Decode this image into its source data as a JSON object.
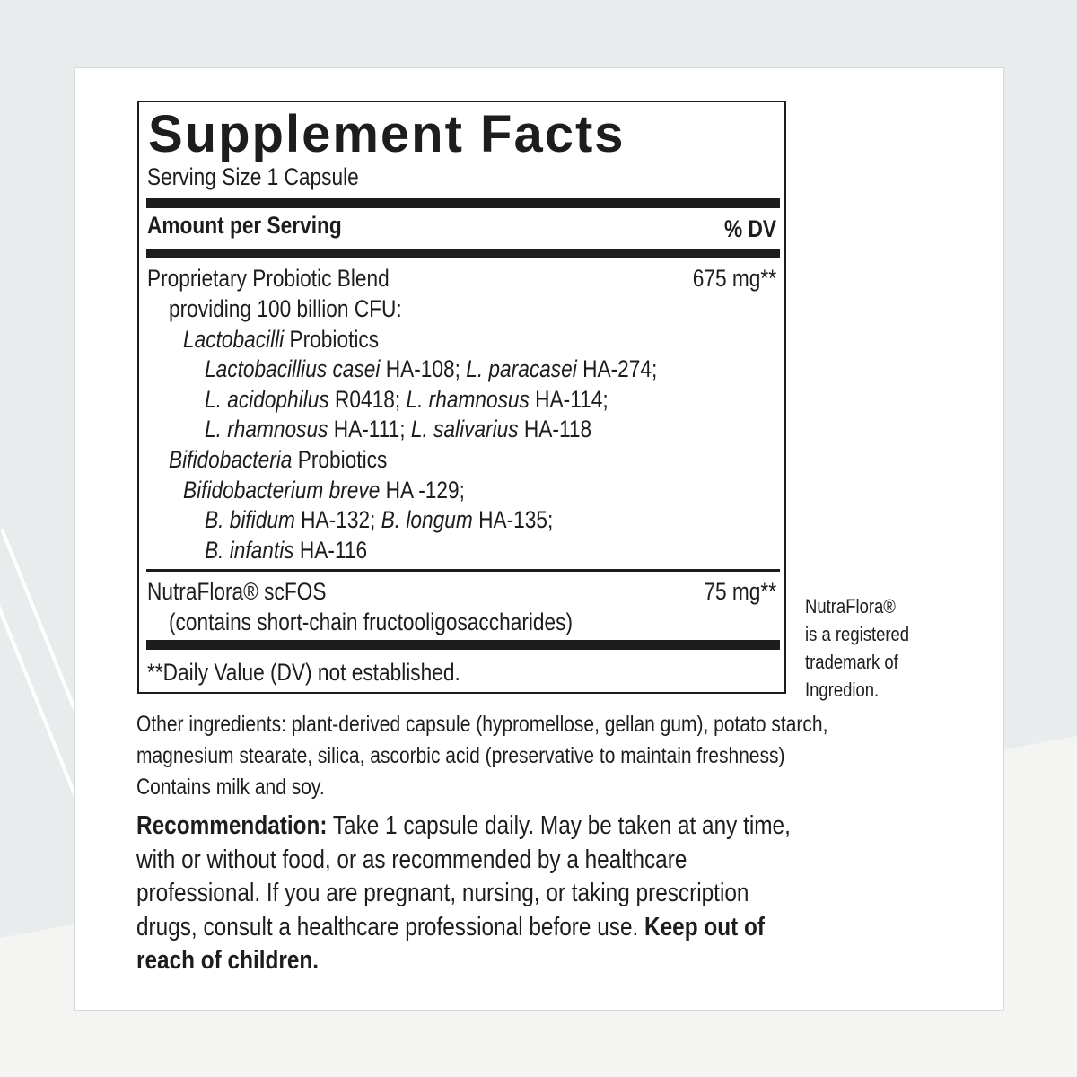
{
  "colors": {
    "background": "#e8eced",
    "card": "#ffffff",
    "text": "#1d1d1d"
  },
  "label": {
    "title": "Supplement Facts",
    "serving_size": "Serving Size 1 Capsule",
    "header_left": "Amount per Serving",
    "header_right": "% DV",
    "blend": {
      "name": "Proprietary Probiotic Blend",
      "amount": "675 mg**",
      "lines": [
        {
          "indent": 1,
          "segments": [
            {
              "text": "providing 100 billion CFU:",
              "italic": false
            }
          ]
        },
        {
          "indent": 2,
          "segments": [
            {
              "text": "Lactobacilli",
              "italic": true
            },
            {
              "text": " Probiotics",
              "italic": false
            }
          ]
        },
        {
          "indent": 3,
          "segments": [
            {
              "text": "Lactobacillius casei",
              "italic": true
            },
            {
              "text": " HA-108; ",
              "italic": false
            },
            {
              "text": "L. paracasei",
              "italic": true
            },
            {
              "text": " HA-274;",
              "italic": false
            }
          ]
        },
        {
          "indent": 3,
          "segments": [
            {
              "text": "L. acidophilus",
              "italic": true
            },
            {
              "text": " R0418; ",
              "italic": false
            },
            {
              "text": "L. rhamnosus",
              "italic": true
            },
            {
              "text": " HA-114;",
              "italic": false
            }
          ]
        },
        {
          "indent": 3,
          "segments": [
            {
              "text": "L. rhamnosus",
              "italic": true
            },
            {
              "text": " HA-111; ",
              "italic": false
            },
            {
              "text": "L. salivarius",
              "italic": true
            },
            {
              "text": " HA-118",
              "italic": false
            }
          ]
        },
        {
          "indent": 1,
          "segments": [
            {
              "text": "Bifidobacteria",
              "italic": true
            },
            {
              "text": " Probiotics",
              "italic": false
            }
          ]
        },
        {
          "indent": 2,
          "segments": [
            {
              "text": "Bifidobacterium breve",
              "italic": true
            },
            {
              "text": " HA -129;",
              "italic": false
            }
          ]
        },
        {
          "indent": 3,
          "segments": [
            {
              "text": "B. bifidum",
              "italic": true
            },
            {
              "text": " HA-132; ",
              "italic": false
            },
            {
              "text": "B. longum",
              "italic": true
            },
            {
              "text": " HA-135;",
              "italic": false
            }
          ]
        },
        {
          "indent": 3,
          "segments": [
            {
              "text": "B. infantis",
              "italic": true
            },
            {
              "text": " HA-116",
              "italic": false
            }
          ]
        }
      ]
    },
    "prebiotic": {
      "name": "NutraFlora® scFOS",
      "amount": "75 mg**",
      "detail": "(contains short-chain fructooligosaccharides)"
    },
    "footnote": "**Daily Value (DV) not established."
  },
  "trademark_note": [
    "NutraFlora®",
    "is a registered",
    "trademark of",
    "Ingredion."
  ],
  "other_ingredients": [
    "Other ingredients: plant-derived capsule (hypromellose, gellan gum), potato starch,",
    "magnesium stearate, silica, ascorbic acid (preservative to maintain freshness)",
    "Contains milk and soy."
  ],
  "recommendation": {
    "label": "Recommendation:",
    "lines": [
      " Take 1 capsule daily. May be taken at any time,",
      "with or without food, or as recommended by a healthcare",
      "professional. If you are pregnant, nursing, or taking prescription",
      "drugs, consult a healthcare professional before use. "
    ],
    "warning_part1": "Keep out of",
    "warning_part2": "reach of children."
  }
}
